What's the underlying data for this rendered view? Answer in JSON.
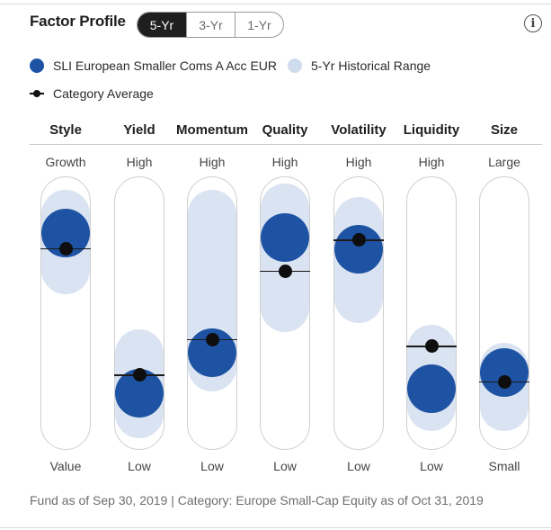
{
  "header": {
    "title": "Factor Profile",
    "toggle": [
      {
        "label": "5-Yr",
        "active": true
      },
      {
        "label": "3-Yr",
        "active": false
      },
      {
        "label": "1-Yr",
        "active": false
      }
    ],
    "info_icon": "info-icon"
  },
  "legend": {
    "fund": "SLI European Smaller Coms A Acc EUR",
    "range": "5-Yr Historical Range",
    "category": "Category Average"
  },
  "colors": {
    "fund": "#1e53a4",
    "range": "#dae3f1",
    "category": "#111111",
    "toggle_active": "#1f1f1f"
  },
  "chart_data": {
    "type": "factor-profile",
    "scale": [
      0,
      100
    ],
    "factors": [
      {
        "name": "Style",
        "high": "Growth",
        "low": "Value",
        "fund": 86,
        "category": 79,
        "range": [
          70,
          95
        ]
      },
      {
        "name": "Yield",
        "high": "High",
        "low": "Low",
        "fund": 14,
        "category": 22,
        "range": [
          5,
          32
        ]
      },
      {
        "name": "Momentum",
        "high": "High",
        "low": "Low",
        "fund": 32,
        "category": 38,
        "range": [
          26,
          95
        ]
      },
      {
        "name": "Quality",
        "high": "High",
        "low": "Low",
        "fund": 84,
        "category": 69,
        "range": [
          53,
          98
        ]
      },
      {
        "name": "Volatility",
        "high": "High",
        "low": "Low",
        "fund": 79,
        "category": 83,
        "range": [
          57,
          92
        ]
      },
      {
        "name": "Liquidity",
        "high": "High",
        "low": "Low",
        "fund": 16,
        "category": 35,
        "range": [
          8,
          34
        ]
      },
      {
        "name": "Size",
        "high": "Large",
        "low": "Small",
        "fund": 23,
        "category": 19,
        "range": [
          8,
          26
        ]
      }
    ]
  },
  "footnote": "Fund as of Sep 30, 2019 | Category: Europe Small-Cap Equity as of Oct 31, 2019"
}
